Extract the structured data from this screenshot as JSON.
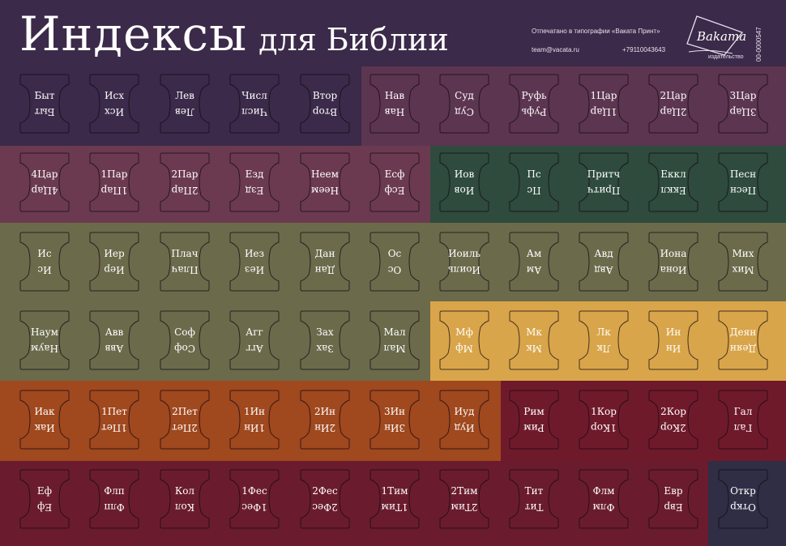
{
  "header": {
    "title_main": "Индексы",
    "title_sub": "для Библии",
    "printed_by": "Отпечатано в типографии «Ваката Принт»",
    "email": "team@vacata.ru",
    "phone": "+79110043643",
    "logo_name": "Bakama",
    "logo_caption": "издательство",
    "code": "00-0000547"
  },
  "colors": {
    "purple_dark": "#3b2a49",
    "plum": "#5c3550",
    "mauve": "#6b3a50",
    "olive": "#6b6a4b",
    "green": "#2e4b3d",
    "gold": "#d9a54a",
    "rust": "#a0481e",
    "crimson": "#6f1a2b",
    "wine": "#6a1c2e",
    "navy": "#2f2e45"
  },
  "rows": [
    [
      "Быт",
      "Исх",
      "Лев",
      "Числ",
      "Втор",
      "Нав",
      "Суд",
      "Руфь",
      "1Цар",
      "2Цар",
      "3Цар"
    ],
    [
      "4Цар",
      "1Пар",
      "2Пар",
      "Езд",
      "Неем",
      "Есф",
      "Иов",
      "Пс",
      "Притч",
      "Еккл",
      "Песн"
    ],
    [
      "Ис",
      "Иер",
      "Плач",
      "Иез",
      "Дан",
      "Ос",
      "Иоиль",
      "Ам",
      "Авд",
      "Иона",
      "Мих"
    ],
    [
      "Наум",
      "Авв",
      "Соф",
      "Агг",
      "Зах",
      "Мал",
      "Мф",
      "Мк",
      "Лк",
      "Ин",
      "Деян"
    ],
    [
      "Иак",
      "1Пет",
      "2Пет",
      "1Ин",
      "2Ин",
      "3Ин",
      "Иуд",
      "Рим",
      "1Кор",
      "2Кор",
      "Гал"
    ],
    [
      "Еф",
      "Флп",
      "Кол",
      "1Фес",
      "2Фес",
      "1Тим",
      "2Тим",
      "Тит",
      "Флм",
      "Евр",
      "Откр"
    ]
  ]
}
